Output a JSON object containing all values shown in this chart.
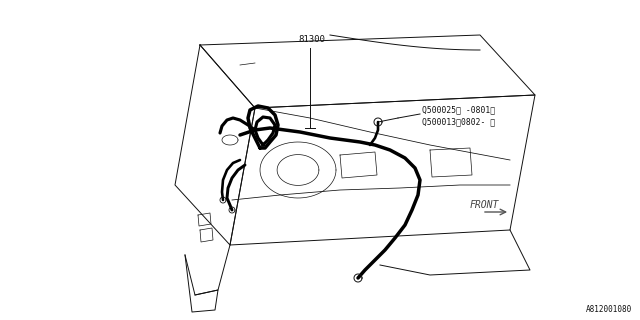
{
  "bg_color": "#ffffff",
  "line_color": "#111111",
  "wire_color": "#000000",
  "thin_color": "#888888",
  "label_81300": "81300",
  "label_q1": "Q500025（ -0801）",
  "label_q2": "Q500013（0802- ）",
  "label_front": "FRONT",
  "label_part_num": "A812001080",
  "fig_width": 6.4,
  "fig_height": 3.2,
  "dpi": 100
}
